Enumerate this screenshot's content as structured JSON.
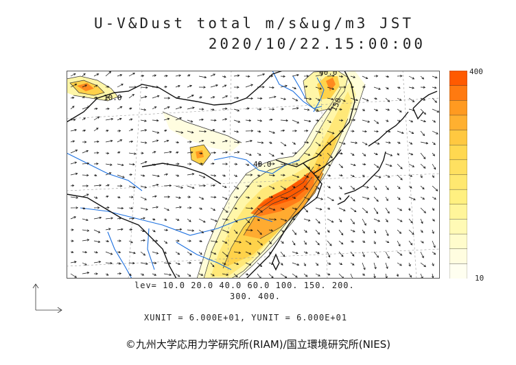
{
  "title": {
    "line1": "U-V&Dust total m/s&ug/m3 JST",
    "line2": "2020/10/22.15:00:00"
  },
  "colorbar": {
    "max_label": "400",
    "min_label": "10",
    "colors": [
      "#ff5a00",
      "#ff7a10",
      "#ff9a20",
      "#ffb030",
      "#ffc840",
      "#ffd850",
      "#ffe060",
      "#ffe870",
      "#fff080",
      "#fff59a",
      "#fffab5",
      "#fffccc",
      "#fffde0",
      "#fffff0"
    ]
  },
  "contour_levels": {
    "line1": "lev= 10.0 20.0 40.0 60.0 100. 150. 200.",
    "line2": "300. 400."
  },
  "units": "XUNIT = 6.000E+01, YUNIT = 6.000E+01",
  "map_labels": {
    "label_top": "40.0",
    "label_left": "10.0",
    "label_mid": "40.0",
    "label_right": "150"
  },
  "copyright": "©九州大学応用力学研究所(RIAM)/国立環境研究所(NIES)"
}
